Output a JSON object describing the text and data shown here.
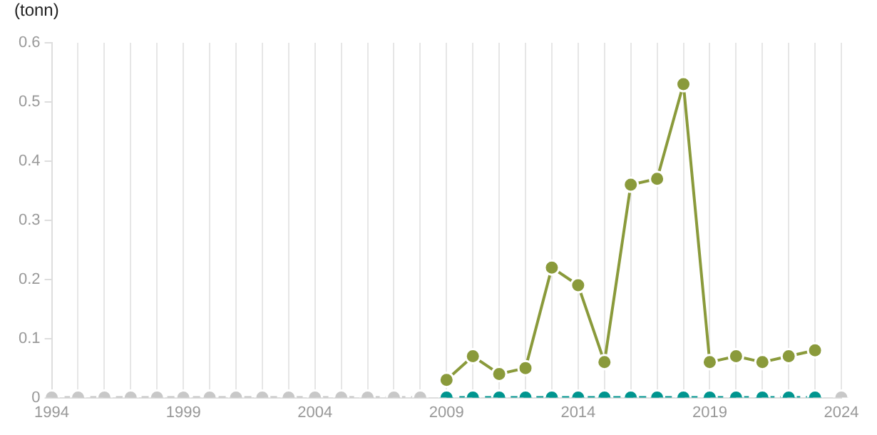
{
  "chart_data": {
    "type": "line",
    "ylabel": "(tonn)",
    "categories": [
      "1994",
      null,
      null,
      null,
      null,
      "1999",
      null,
      null,
      null,
      null,
      "2004",
      null,
      null,
      null,
      null,
      "2009",
      null,
      null,
      null,
      null,
      "2014",
      null,
      null,
      null,
      null,
      "2019",
      null,
      null,
      null,
      null,
      "2024"
    ],
    "series": [
      {
        "color": "#c8c8c8",
        "line_style": "dashed",
        "values": [
          0,
          0,
          0,
          0,
          0,
          0,
          0,
          0,
          0,
          0,
          0,
          0,
          0,
          0,
          0,
          null,
          null,
          null,
          null,
          null,
          null,
          null,
          null,
          null,
          null,
          null,
          null,
          null,
          null,
          null,
          0
        ]
      },
      {
        "color": "#8a9a3b",
        "line_style": "solid",
        "values": [
          null,
          null,
          null,
          null,
          null,
          null,
          null,
          null,
          null,
          null,
          null,
          null,
          null,
          null,
          null,
          0.03,
          0.07,
          0.04,
          0.05,
          0.22,
          0.19,
          0.06,
          0.36,
          0.37,
          0.53,
          0.06,
          0.07,
          0.06,
          0.07,
          0.08,
          null
        ]
      },
      {
        "color": "#00958f",
        "line_style": "dashed",
        "values": [
          null,
          null,
          null,
          null,
          null,
          null,
          null,
          null,
          null,
          null,
          null,
          null,
          null,
          null,
          null,
          0,
          0,
          0,
          0,
          0,
          0,
          0,
          0,
          0,
          0,
          0,
          0,
          0,
          0,
          0,
          null
        ]
      }
    ],
    "ylim": [
      0,
      0.6
    ],
    "yticks": [
      0,
      0.1,
      0.2,
      0.3,
      0.4,
      0.5,
      0.6
    ],
    "grid": "x",
    "legend": false,
    "marker": "circle"
  }
}
